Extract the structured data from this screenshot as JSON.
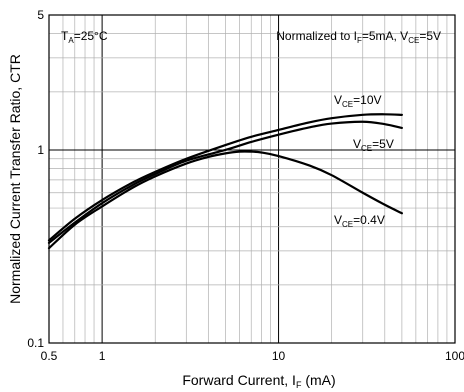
{
  "chart_data": {
    "type": "line",
    "title": "",
    "xlabel": {
      "text": "Forward Current, I",
      "sub": "F",
      "suffix": " (mA)"
    },
    "ylabel": "Normalized Current Transfer Ratio, CTR",
    "x_scale": "log",
    "y_scale": "log",
    "xlim": [
      0.5,
      100
    ],
    "ylim": [
      0.1,
      5
    ],
    "grid": true,
    "x_ticks": [
      {
        "v": 0.5,
        "label": "0.5"
      },
      {
        "v": 1,
        "label": "1"
      },
      {
        "v": 10,
        "label": "10"
      },
      {
        "v": 100,
        "label": "100"
      }
    ],
    "y_ticks": [
      {
        "v": 0.1,
        "label": "0.1"
      },
      {
        "v": 1,
        "label": "1"
      },
      {
        "v": 5,
        "label": "5"
      }
    ],
    "annotations": {
      "ta": {
        "pre": "T",
        "sub": "A",
        "post": "=25°C"
      },
      "norm": {
        "pre": "Normalized to I",
        "sub1": "F",
        "mid": "=5mA, V",
        "sub2": "CE",
        "post": "=5V"
      }
    },
    "series": [
      {
        "name": "V_CE=10V",
        "label": {
          "pre": "V",
          "sub": "CE",
          "post": "=10V"
        },
        "x": [
          0.5,
          0.7,
          1,
          1.5,
          2,
          3,
          5,
          7,
          10,
          15,
          20,
          30,
          40,
          50
        ],
        "y": [
          0.34,
          0.44,
          0.55,
          0.68,
          0.77,
          0.9,
          1.06,
          1.17,
          1.27,
          1.39,
          1.46,
          1.52,
          1.53,
          1.52
        ]
      },
      {
        "name": "V_CE=5V",
        "label": {
          "pre": "V",
          "sub": "CE",
          "post": "=5V"
        },
        "x": [
          0.5,
          0.7,
          1,
          1.5,
          2,
          3,
          5,
          7,
          10,
          15,
          20,
          30,
          40,
          50
        ],
        "y": [
          0.33,
          0.42,
          0.53,
          0.66,
          0.75,
          0.88,
          1.0,
          1.1,
          1.2,
          1.31,
          1.37,
          1.4,
          1.36,
          1.3
        ]
      },
      {
        "name": "V_CE=0.4V",
        "label": {
          "pre": "V",
          "sub": "CE",
          "post": "=0.4V"
        },
        "x": [
          0.5,
          0.7,
          1,
          1.5,
          2,
          3,
          4,
          5,
          6,
          7,
          8,
          10,
          15,
          20,
          30,
          40,
          50
        ],
        "y": [
          0.31,
          0.41,
          0.51,
          0.64,
          0.73,
          0.85,
          0.92,
          0.96,
          0.98,
          0.98,
          0.97,
          0.93,
          0.83,
          0.74,
          0.6,
          0.52,
          0.47
        ]
      }
    ]
  }
}
